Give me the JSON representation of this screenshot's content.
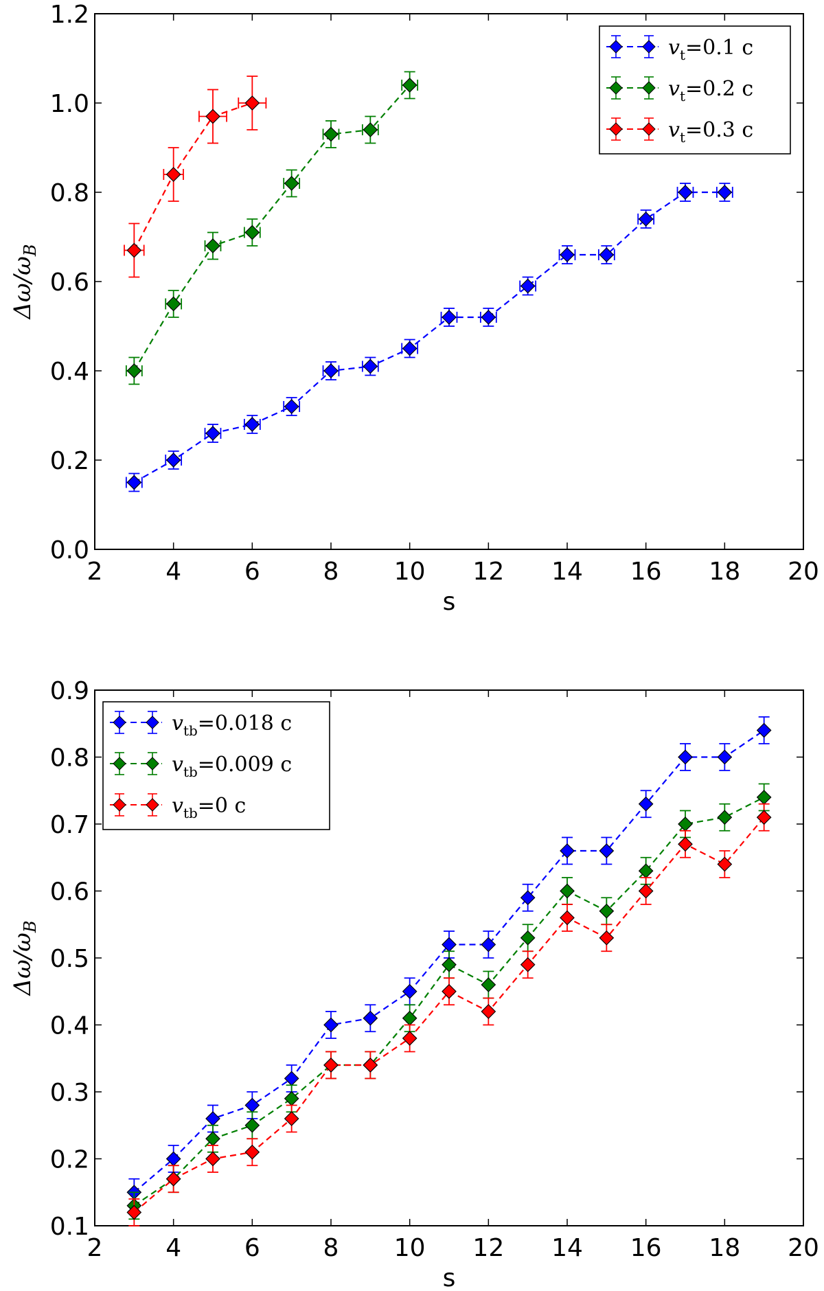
{
  "chart_data": [
    {
      "type": "line",
      "xlabel": "s",
      "ylabel": "Δω/ω_B",
      "xlim": [
        2,
        20
      ],
      "ylim": [
        0.0,
        1.2
      ],
      "xticks": [
        "2",
        "4",
        "6",
        "8",
        "10",
        "12",
        "14",
        "16",
        "18",
        "20"
      ],
      "yticks": [
        "0.0",
        "0.2",
        "0.4",
        "0.6",
        "0.8",
        "1.0",
        "1.2"
      ],
      "legend_position": "top-right",
      "grid": false,
      "series": [
        {
          "name": "v_t =0.1 c",
          "legend_var": "v",
          "legend_sub": "t",
          "legend_value": "=0.1 c",
          "color": "#0000ff",
          "x": [
            3,
            4,
            5,
            6,
            7,
            8,
            9,
            10,
            11,
            12,
            13,
            14,
            15,
            16,
            17,
            18
          ],
          "y": [
            0.15,
            0.2,
            0.26,
            0.28,
            0.32,
            0.4,
            0.41,
            0.45,
            0.52,
            0.52,
            0.59,
            0.66,
            0.66,
            0.74,
            0.8,
            0.8
          ],
          "yerr": [
            0.02,
            0.02,
            0.02,
            0.02,
            0.02,
            0.02,
            0.02,
            0.02,
            0.02,
            0.02,
            0.02,
            0.02,
            0.02,
            0.02,
            0.02,
            0.02
          ],
          "xerr": [
            0.2,
            0.2,
            0.2,
            0.2,
            0.2,
            0.2,
            0.2,
            0.2,
            0.2,
            0.2,
            0.2,
            0.2,
            0.2,
            0.2,
            0.2,
            0.2
          ]
        },
        {
          "name": "v_t =0.2 c",
          "legend_var": "v",
          "legend_sub": "t",
          "legend_value": "=0.2 c",
          "color": "#007f00",
          "x": [
            3,
            4,
            5,
            6,
            7,
            8,
            9,
            10
          ],
          "y": [
            0.4,
            0.55,
            0.68,
            0.71,
            0.82,
            0.93,
            0.94,
            1.04
          ],
          "yerr": [
            0.03,
            0.03,
            0.03,
            0.03,
            0.03,
            0.03,
            0.03,
            0.03
          ],
          "xerr": [
            0.2,
            0.2,
            0.2,
            0.2,
            0.2,
            0.2,
            0.2,
            0.2
          ]
        },
        {
          "name": "v_t =0.3 c",
          "legend_var": "v",
          "legend_sub": "t",
          "legend_value": "=0.3 c",
          "color": "#ff0000",
          "x": [
            3,
            4,
            5,
            6
          ],
          "y": [
            0.67,
            0.84,
            0.97,
            1.0
          ],
          "yerr": [
            0.06,
            0.06,
            0.06,
            0.06
          ],
          "xerr": [
            0.25,
            0.25,
            0.35,
            0.35
          ]
        }
      ]
    },
    {
      "type": "line",
      "xlabel": "s",
      "ylabel": "Δω/ω_B",
      "xlim": [
        2,
        20
      ],
      "ylim": [
        0.1,
        0.9
      ],
      "xticks": [
        "2",
        "4",
        "6",
        "8",
        "10",
        "12",
        "14",
        "16",
        "18",
        "20"
      ],
      "yticks": [
        "0.1",
        "0.2",
        "0.3",
        "0.4",
        "0.5",
        "0.6",
        "0.7",
        "0.8",
        "0.9"
      ],
      "legend_position": "top-left",
      "grid": false,
      "series": [
        {
          "name": "v_tb =0.018 c",
          "legend_var": "v",
          "legend_sub": "tb",
          "legend_value": "=0.018 c",
          "color": "#0000ff",
          "x": [
            3,
            4,
            5,
            6,
            7,
            8,
            9,
            10,
            11,
            12,
            13,
            14,
            15,
            16,
            17,
            18,
            19
          ],
          "y": [
            0.15,
            0.2,
            0.26,
            0.28,
            0.32,
            0.4,
            0.41,
            0.45,
            0.52,
            0.52,
            0.59,
            0.66,
            0.66,
            0.73,
            0.8,
            0.8,
            0.84
          ],
          "yerr": [
            0.02,
            0.02,
            0.02,
            0.02,
            0.02,
            0.02,
            0.02,
            0.02,
            0.02,
            0.02,
            0.02,
            0.02,
            0.02,
            0.02,
            0.02,
            0.02,
            0.02
          ],
          "xerr": [
            0,
            0,
            0,
            0,
            0,
            0,
            0,
            0,
            0,
            0,
            0,
            0,
            0,
            0,
            0,
            0,
            0
          ]
        },
        {
          "name": "v_tb =0.009 c",
          "legend_var": "v",
          "legend_sub": "tb",
          "legend_value": "=0.009 c",
          "color": "#007f00",
          "x": [
            3,
            4,
            5,
            6,
            7,
            8,
            9,
            10,
            11,
            12,
            13,
            14,
            15,
            16,
            17,
            18,
            19
          ],
          "y": [
            0.13,
            0.17,
            0.23,
            0.25,
            0.29,
            0.34,
            0.34,
            0.41,
            0.49,
            0.46,
            0.53,
            0.6,
            0.57,
            0.63,
            0.7,
            0.71,
            0.74
          ],
          "yerr": [
            0.02,
            0.02,
            0.02,
            0.02,
            0.02,
            0.02,
            0.02,
            0.02,
            0.02,
            0.02,
            0.02,
            0.02,
            0.02,
            0.02,
            0.02,
            0.02,
            0.02
          ],
          "xerr": [
            0,
            0,
            0,
            0,
            0,
            0,
            0,
            0,
            0,
            0,
            0,
            0,
            0,
            0,
            0,
            0,
            0
          ]
        },
        {
          "name": "v_tb =0 c",
          "legend_var": "v",
          "legend_sub": "tb",
          "legend_value": "=0 c",
          "color": "#ff0000",
          "x": [
            3,
            4,
            5,
            6,
            7,
            8,
            9,
            10,
            11,
            12,
            13,
            14,
            15,
            16,
            17,
            18,
            19
          ],
          "y": [
            0.12,
            0.17,
            0.2,
            0.21,
            0.26,
            0.34,
            0.34,
            0.38,
            0.45,
            0.42,
            0.49,
            0.56,
            0.53,
            0.6,
            0.67,
            0.64,
            0.71
          ],
          "yerr": [
            0.02,
            0.02,
            0.02,
            0.02,
            0.02,
            0.02,
            0.02,
            0.02,
            0.02,
            0.02,
            0.02,
            0.02,
            0.02,
            0.02,
            0.02,
            0.02,
            0.02
          ],
          "xerr": [
            0,
            0,
            0,
            0,
            0,
            0,
            0,
            0,
            0,
            0,
            0,
            0,
            0,
            0,
            0,
            0,
            0
          ]
        }
      ]
    }
  ]
}
